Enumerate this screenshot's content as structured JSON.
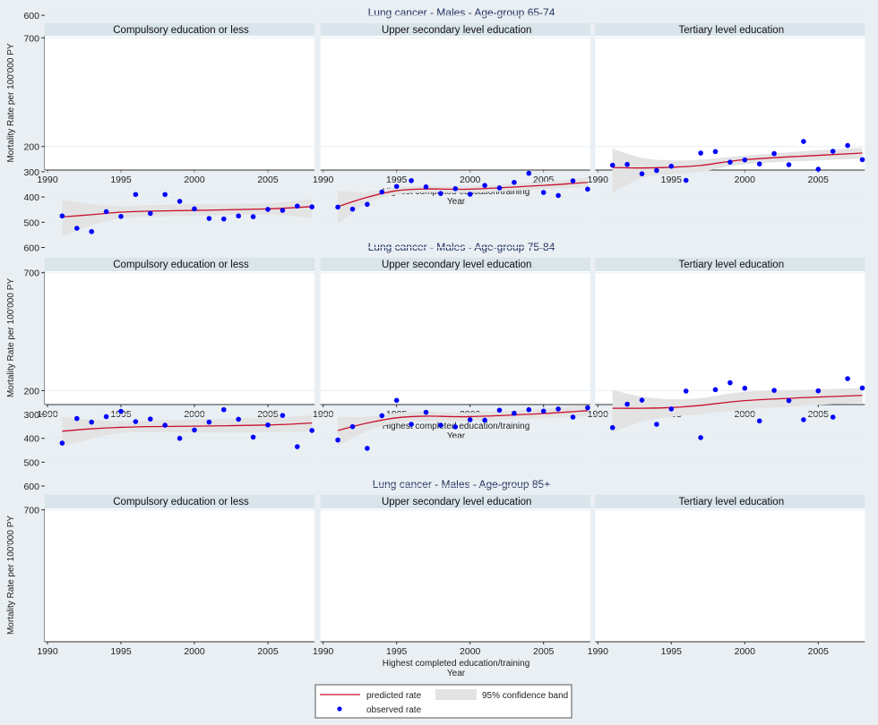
{
  "chart_data": {
    "type": "scatter",
    "ylabel": "Mortality Rate per 100'000 PY",
    "xlabel": "Highest completed education/training",
    "xlabel2": "Year",
    "xlim": [
      1990,
      2008.2
    ],
    "ylim": [
      110,
      710
    ],
    "xticks": [
      "1990",
      "1995",
      "2000",
      "2005"
    ],
    "yticks": [
      "200",
      "300",
      "400",
      "500",
      "600",
      "700"
    ],
    "years": [
      1991,
      1992,
      1993,
      1994,
      1995,
      1996,
      1997,
      1998,
      1999,
      2000,
      2001,
      2002,
      2003,
      2004,
      2005,
      2006,
      2007,
      2008
    ],
    "fit_years": [
      1991,
      1993,
      1995,
      1997,
      2000,
      2005,
      2008
    ],
    "colors": {
      "observed": "#0000ff",
      "predicted": "#c8102e",
      "band": "#e3e3e3",
      "header": "#d9e4eb",
      "background": "#e9eff3"
    },
    "legend": {
      "predicted": "predicted rate",
      "band": "95% confidence band",
      "observed": "observed rate",
      "placement": "bottom-center"
    },
    "rows": [
      {
        "title": "Lung cancer - Males - Age-group 65-74",
        "panels": [
          {
            "title": "Compulsory education or less",
            "observed": [
              446,
              443,
              439,
              443,
              379,
              375,
              363,
              359,
              338,
              352,
              372,
              342,
              322,
              328,
              339,
              303,
              328,
              326
            ],
            "predicted": [
              369,
              360,
              352,
              350,
              348,
              344,
              338
            ],
            "lower": [
              319,
              333,
              338,
              339,
              338,
              333,
              320
            ],
            "upper": [
              428,
              392,
              368,
              362,
              358,
              355,
              361
            ]
          },
          {
            "title": "Upper secondary level education",
            "observed": [
              328,
              311,
              306,
              283,
              273,
              286,
              254,
              260,
              249,
              244,
              281,
              261,
              275,
              256,
              250,
              219,
              234,
              248
            ],
            "predicted": [
              311,
              297,
              266,
              260,
              261,
              252,
              240
            ],
            "lower": [
              266,
              280,
              258,
              252,
              253,
              244,
              230
            ],
            "upper": [
              359,
              315,
              276,
              268,
              270,
              261,
              252
            ]
          },
          {
            "title": "Tertiary level education",
            "observed": [
              163,
              238,
              191,
              174,
              163,
              197,
              156,
              183,
              119,
              143,
              156,
              164,
              152,
              135,
              174,
              142,
              131,
              134
            ],
            "predicted": [
              175,
              175,
              174,
              168,
              154,
              146,
              140
            ],
            "lower": [
              130,
              148,
              158,
              155,
              144,
              136,
              127
            ],
            "upper": [
              236,
              200,
              190,
              182,
              165,
              157,
              152
            ]
          }
        ]
      },
      {
        "title": "Lung cancer - Males - Age-group 75-84",
        "panels": [
          {
            "title": "Compulsory education or less",
            "observed": [
              475,
              524,
              537,
              458,
              477,
              390,
              465,
              390,
              417,
              447,
              485,
              487,
              475,
              478,
              449,
              453,
              436,
              439
            ],
            "predicted": [
              479,
              470,
              460,
              456,
              453,
              447,
              438
            ],
            "lower": [
              412,
              428,
              436,
              432,
              429,
              425,
              408
            ],
            "upper": [
              557,
              512,
              485,
              478,
              474,
              470,
              484
            ]
          },
          {
            "title": "Upper secondary level education",
            "observed": [
              440,
              448,
              429,
              380,
              358,
              335,
              360,
              386,
              367,
              389,
              354,
              364,
              342,
              306,
              382,
              394,
              336,
              369
            ],
            "predicted": [
              438,
              401,
              375,
              368,
              369,
              354,
              342
            ],
            "lower": [
              376,
              380,
              362,
              356,
              357,
              340,
              323
            ],
            "upper": [
              507,
              425,
              390,
              382,
              383,
              369,
              362
            ]
          },
          {
            "title": "Tertiary level education",
            "observed": [
              274,
              271,
              308,
              295,
              278,
              334,
              226,
              220,
              262,
              253,
              269,
              228,
              272,
              180,
              290,
              219,
              196,
              252
            ],
            "predicted": [
              283,
              285,
              282,
              275,
              252,
              235,
              226
            ],
            "lower": [
              208,
              245,
              255,
              252,
              236,
              215,
              205
            ],
            "upper": [
              383,
              325,
              310,
              300,
              270,
              255,
              248
            ]
          }
        ]
      },
      {
        "title": "Lung cancer - Males - Age-group 85+",
        "panels": [
          {
            "title": "Compulsory education or less",
            "observed": [
              420,
              317,
              332,
              309,
              287,
              330,
              319,
              345,
              400,
              365,
              332,
              280,
              320,
              395,
              344,
              304,
              435,
              367
            ],
            "predicted": [
              370,
              360,
              354,
              351,
              349,
              344,
              336
            ],
            "lower": [
              312,
              322,
              328,
              325,
              321,
              314,
              304
            ],
            "upper": [
              435,
              402,
              378,
              375,
              376,
              375,
              370
            ]
          },
          {
            "title": "Upper secondary level education",
            "observed": [
              407,
              351,
              442,
              305,
              241,
              341,
              291,
              345,
              352,
              322,
              324,
              282,
              295,
              280,
              286,
              277,
              311,
              272
            ],
            "predicted": [
              367,
              336,
              314,
              307,
              309,
              296,
              284
            ],
            "lower": [
              311,
              310,
              293,
              288,
              292,
              276,
              260
            ],
            "upper": [
              430,
              370,
              335,
              328,
              328,
              316,
              307
            ]
          },
          {
            "title": "Tertiary level education",
            "observed": [
              355,
              257,
              240,
              341,
              277,
              202,
              397,
              196,
              167,
              190,
              327,
              199,
              242,
              322,
              201,
              311,
              150,
              189
            ],
            "predicted": [
              274,
              274,
              271,
              262,
              242,
              227,
              220
            ],
            "lower": [
              197,
              225,
              236,
              232,
              205,
              195,
              189
            ],
            "upper": [
              376,
              330,
              310,
              298,
              280,
              260,
              252
            ]
          }
        ]
      }
    ]
  }
}
